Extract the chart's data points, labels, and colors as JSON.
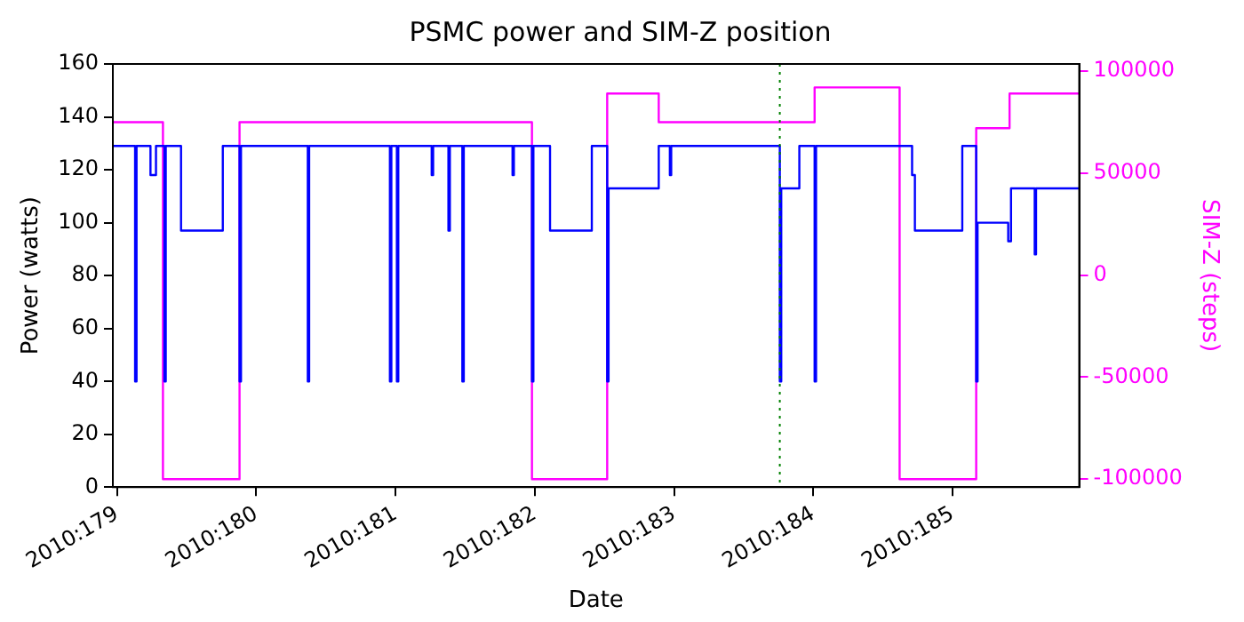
{
  "chart_data": {
    "type": "step",
    "title": "PSMC power and SIM-Z position",
    "xlabel": "Date",
    "ylabel": "Power (watts)",
    "y2label": "SIM-Z (steps)",
    "xlim": [
      "2010-06-27T23:17",
      "2010-07-04T21:50"
    ],
    "xticks": [
      {
        "value": "2010-06-28",
        "label": "2010:179"
      },
      {
        "value": "2010-06-29",
        "label": "2010:180"
      },
      {
        "value": "2010-06-30",
        "label": "2010:181"
      },
      {
        "value": "2010-07-01",
        "label": "2010:182"
      },
      {
        "value": "2010-07-02",
        "label": "2010:183"
      },
      {
        "value": "2010-07-03",
        "label": "2010:184"
      },
      {
        "value": "2010-07-04",
        "label": "2010:185"
      }
    ],
    "ylim": [
      0,
      160
    ],
    "yticks": [
      0,
      20,
      40,
      60,
      80,
      100,
      120,
      140,
      160
    ],
    "y2lim": [
      -104000,
      103500
    ],
    "y2ticks": [
      -100000,
      -50000,
      0,
      50000,
      100000
    ],
    "grid": false,
    "legend": false,
    "marker": "none",
    "line_style": "solid",
    "series": [
      {
        "color": "#0000ff",
        "x": [
          "2010-06-27T23:17",
          "2010-06-28T03:07",
          "2010-06-28T03:22",
          "2010-06-28T05:46",
          "2010-06-28T06:43",
          "2010-06-28T08:10",
          "2010-06-28T08:24",
          "2010-06-28T11:02",
          "2010-06-28T18:14",
          "2010-06-28T21:07",
          "2010-06-28T21:22",
          "2010-06-29T08:53",
          "2010-06-29T09:07",
          "2010-06-29T23:02",
          "2010-06-29T23:17",
          "2010-06-30T00:14",
          "2010-06-30T00:29",
          "2010-06-30T06:14",
          "2010-06-30T06:29",
          "2010-06-30T09:07",
          "2010-06-30T09:22",
          "2010-06-30T11:31",
          "2010-06-30T11:46",
          "2010-06-30T20:10",
          "2010-06-30T20:24",
          "2010-06-30T23:31",
          "2010-06-30T23:46",
          "2010-07-01T02:38",
          "2010-07-01T09:50",
          "2010-07-01T12:29",
          "2010-07-01T12:43",
          "2010-07-01T21:22",
          "2010-07-01T23:17",
          "2010-07-01T23:31",
          "2010-07-02T18:14",
          "2010-07-02T18:29",
          "2010-07-02T21:36",
          "2010-07-03T00:14",
          "2010-07-03T00:29",
          "2010-07-03T17:02",
          "2010-07-03T17:31",
          "2010-07-04T01:41",
          "2010-07-04T04:05",
          "2010-07-04T04:19",
          "2010-07-04T09:36",
          "2010-07-04T10:05",
          "2010-07-04T14:10",
          "2010-07-04T14:24",
          "2010-07-04T21:50"
        ],
        "values": [
          129,
          40,
          129,
          118,
          129,
          40,
          129,
          97,
          129,
          40,
          129,
          40,
          129,
          40,
          129,
          40,
          129,
          118,
          129,
          97,
          129,
          40,
          129,
          118,
          129,
          40,
          129,
          97,
          129,
          40,
          113,
          129,
          118,
          129,
          40,
          113,
          129,
          40,
          129,
          118,
          97,
          129,
          40,
          100,
          93,
          113,
          88,
          113,
          113
        ]
      },
      {
        "color": "#ff00ff",
        "axis": "y2",
        "x": [
          "2010-06-27T23:17",
          "2010-06-28T07:55",
          "2010-06-28T21:07",
          "2010-06-30T23:31",
          "2010-07-01T12:29",
          "2010-07-01T21:22",
          "2010-07-03T00:14",
          "2010-07-03T14:53",
          "2010-07-04T04:05",
          "2010-07-04T09:50",
          "2010-07-04T21:50"
        ],
        "values": [
          75000,
          -100000,
          75000,
          -100000,
          89000,
          75000,
          92000,
          -100000,
          72000,
          89000,
          89000
        ]
      }
    ],
    "ref_lines": [
      {
        "axis": "x",
        "value": "2010-07-02T18:14",
        "color": "#008000",
        "line_style": "dotted"
      }
    ]
  }
}
